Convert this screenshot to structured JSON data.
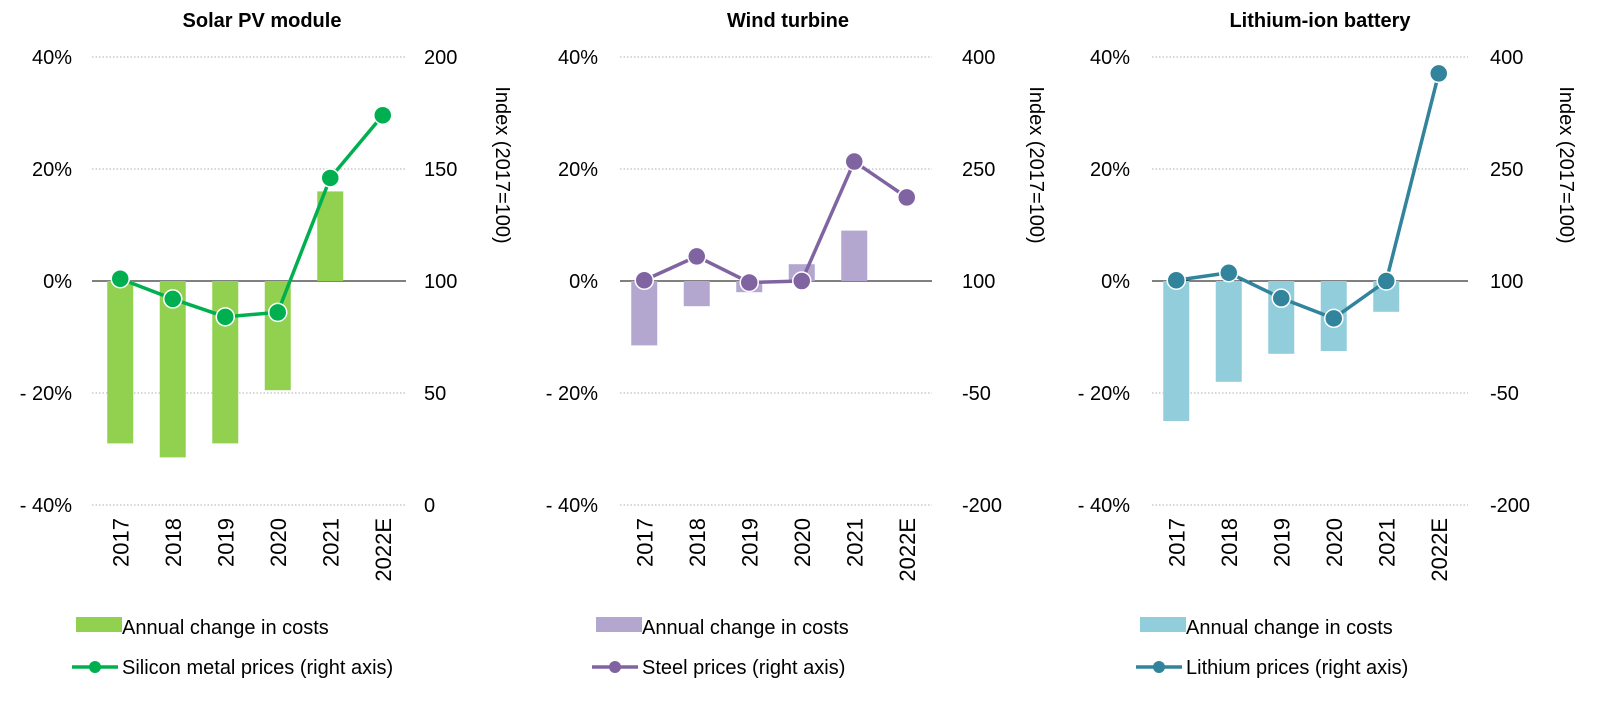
{
  "chart_data": [
    {
      "type": "bar+line",
      "title": "Solar PV module",
      "categories": [
        "2017",
        "2018",
        "2019",
        "2020",
        "2021",
        "2022E"
      ],
      "left_axis": {
        "ylim": [
          -40,
          40
        ],
        "ticks": [
          "40%",
          "20%",
          "0%",
          "- 20%",
          "- 40%"
        ]
      },
      "right_axis": {
        "ylim": [
          0,
          200
        ],
        "ticks": [
          "200",
          "150",
          "100",
          "50",
          "0"
        ],
        "label": "Index (2017=100)"
      },
      "grid": true,
      "legend_position": "bottom",
      "series": [
        {
          "name": "Annual change in costs",
          "type": "bar",
          "axis": "left",
          "color": "#92d050",
          "values": [
            -29,
            -31.5,
            -29,
            -19.5,
            16,
            null
          ]
        },
        {
          "name": "Silicon metal prices (right axis)",
          "type": "line",
          "axis": "right",
          "color": "#00b050",
          "values": [
            101,
            92,
            84,
            86,
            146,
            174
          ]
        }
      ]
    },
    {
      "type": "bar+line",
      "title": "Wind turbine",
      "categories": [
        "2017",
        "2018",
        "2019",
        "2020",
        "2021",
        "2022E"
      ],
      "left_axis": {
        "ylim": [
          -40,
          40
        ],
        "ticks": [
          "40%",
          "20%",
          "0%",
          "- 20%",
          "- 40%"
        ]
      },
      "right_axis": {
        "ylim": [
          -200,
          400
        ],
        "ticks": [
          "400",
          "250",
          "100",
          "-50",
          "-200"
        ],
        "label": "Index (2017=100)"
      },
      "grid": true,
      "legend_position": "bottom",
      "series": [
        {
          "name": "Annual change in costs",
          "type": "bar",
          "axis": "left",
          "color": "#b4a7cf",
          "values": [
            -11.5,
            -4.5,
            -2,
            3,
            9,
            null
          ]
        },
        {
          "name": "Steel prices (right axis)",
          "type": "line",
          "axis": "right",
          "color": "#8064a2",
          "values": [
            101,
            133,
            98,
            100,
            260,
            212
          ]
        }
      ]
    },
    {
      "type": "bar+line",
      "title": "Lithium-ion battery",
      "categories": [
        "2017",
        "2018",
        "2019",
        "2020",
        "2021",
        "2022E"
      ],
      "left_axis": {
        "ylim": [
          -40,
          40
        ],
        "ticks": [
          "40%",
          "20%",
          "0%",
          "- 20%",
          "- 40%"
        ]
      },
      "right_axis": {
        "ylim": [
          -200,
          400
        ],
        "ticks": [
          "400",
          "250",
          "100",
          "-50",
          "-200"
        ],
        "label": "Index (2017=100)"
      },
      "grid": true,
      "legend_position": "bottom",
      "series": [
        {
          "name": "Annual change in costs",
          "type": "bar",
          "axis": "left",
          "color": "#92cddc",
          "values": [
            -25,
            -18,
            -13,
            -12.5,
            -5.5,
            null
          ]
        },
        {
          "name": "Lithium prices (right axis)",
          "type": "line",
          "axis": "right",
          "color": "#31849b",
          "values": [
            101,
            111,
            77,
            50,
            100,
            378
          ]
        }
      ]
    }
  ]
}
